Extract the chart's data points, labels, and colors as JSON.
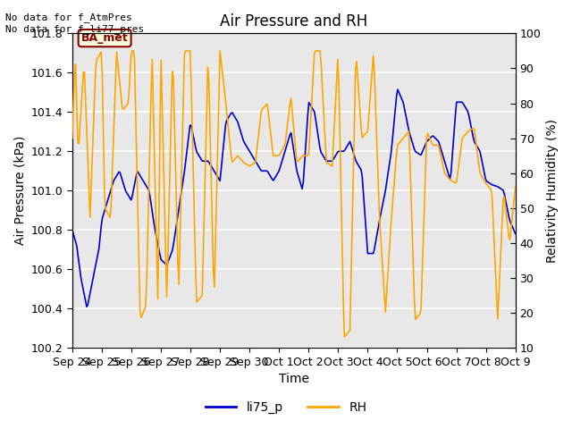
{
  "title": "Air Pressure and RH",
  "xlabel": "Time",
  "ylabel_left": "Air Pressure (kPa)",
  "ylabel_right": "Relativity Humidity (%)",
  "ylim_left": [
    100.2,
    101.8
  ],
  "ylim_right": [
    10,
    100
  ],
  "yticks_left": [
    100.2,
    100.4,
    100.6,
    100.8,
    101.0,
    101.2,
    101.4,
    101.6,
    101.8
  ],
  "yticks_right": [
    10,
    20,
    30,
    40,
    50,
    60,
    70,
    80,
    90,
    100
  ],
  "annotation_text": "No data for f_AtmPres\nNo data for f_li77_pres",
  "box_label": "BA_met",
  "legend_entries": [
    "li75_p",
    "RH"
  ],
  "line_color_blue": "#0000CC",
  "line_color_orange": "#FFA500",
  "bg_color": "#E8E8E8",
  "grid_color": "white",
  "title_fontsize": 12,
  "axis_label_fontsize": 10,
  "tick_label_fontsize": 9,
  "xtick_labels": [
    "Sep 24",
    "Sep 25",
    "Sep 26",
    "Sep 27",
    "Sep 28",
    "Sep 29",
    "Sep 30",
    "Oct 1",
    "Oct 2",
    "Oct 3",
    "Oct 4",
    "Oct 5",
    "Oct 6",
    "Oct 7",
    "Oct 8",
    "Oct 9"
  ],
  "num_days": 15,
  "pressure_seed": 42,
  "rh_seed": 123
}
